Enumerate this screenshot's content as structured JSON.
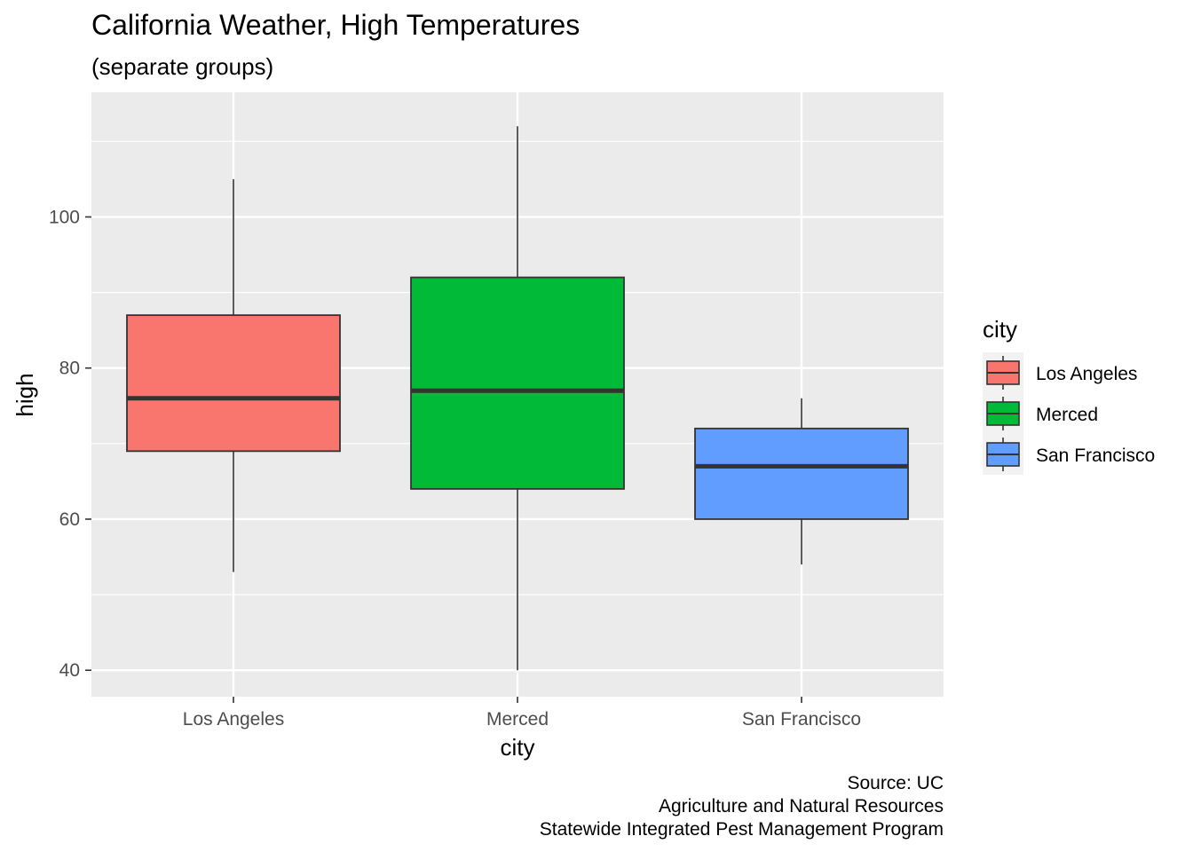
{
  "chart_data": {
    "type": "boxplot",
    "title": "California Weather, High Temperatures",
    "subtitle": "(separate groups)",
    "xlabel": "city",
    "ylabel": "high",
    "ylim": [
      36.5,
      116.5
    ],
    "yticks": [
      40,
      60,
      80,
      100
    ],
    "grid": true,
    "legend": {
      "title": "city",
      "placement": "right",
      "entries": [
        "Los Angeles",
        "Merced",
        "San Francisco"
      ]
    },
    "categories": [
      "Los Angeles",
      "Merced",
      "San Francisco"
    ],
    "series": [
      {
        "name": "Los Angeles",
        "color": "#F8766D",
        "whisker_low": 53,
        "q1": 69,
        "median": 76,
        "q3": 87,
        "whisker_high": 105
      },
      {
        "name": "Merced",
        "color": "#00BA38",
        "whisker_low": 40,
        "q1": 64,
        "median": 77,
        "q3": 92,
        "whisker_high": 112
      },
      {
        "name": "San Francisco",
        "color": "#619CFF",
        "whisker_low": 54,
        "q1": 60,
        "median": 67,
        "q3": 72,
        "whisker_high": 76
      }
    ],
    "caption": [
      "Source: UC",
      "Agriculture and Natural Resources",
      "Statewide Integrated Pest Management Program"
    ]
  }
}
